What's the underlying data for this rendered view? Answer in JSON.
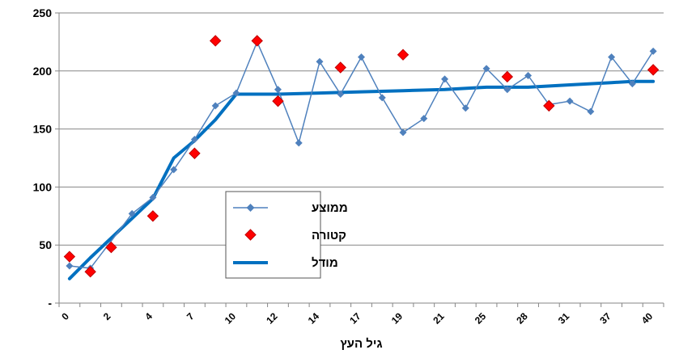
{
  "chart_data": {
    "type": "line",
    "xlabel": "גיל העץ",
    "ylabel": "",
    "ylim": [
      0,
      250
    ],
    "yticks": [
      "-",
      "50",
      "100",
      "150",
      "200",
      "250"
    ],
    "xtick_labels": [
      "0",
      "2",
      "4",
      "7",
      "10",
      "12",
      "14",
      "17",
      "19",
      "21",
      "25",
      "28",
      "31",
      "37",
      "40"
    ],
    "grid": "horizontal",
    "legend_position": "center-left",
    "colors": {
      "avg": "#4f81bd",
      "harvest": "#ff0000",
      "harvest_edge": "#c00000",
      "model": "#0070c0"
    },
    "series": [
      {
        "name": "ממוצע",
        "style": "line-diamond",
        "points": [
          [
            0,
            32
          ],
          [
            1,
            30
          ],
          [
            3,
            77
          ],
          [
            4,
            91
          ],
          [
            5,
            115
          ],
          [
            6,
            141
          ],
          [
            7,
            170
          ],
          [
            8,
            181
          ],
          [
            9,
            225
          ],
          [
            10,
            184
          ],
          [
            11,
            138
          ],
          [
            12,
            208
          ],
          [
            13,
            180
          ],
          [
            14,
            212
          ],
          [
            15,
            177
          ],
          [
            16,
            147
          ],
          [
            17,
            159
          ],
          [
            18,
            193
          ],
          [
            19,
            168
          ],
          [
            20,
            202
          ],
          [
            21,
            184
          ],
          [
            22,
            196
          ],
          [
            23,
            171
          ],
          [
            24,
            174
          ],
          [
            25,
            165
          ],
          [
            26,
            212
          ],
          [
            27,
            189
          ],
          [
            28,
            217
          ]
        ]
      },
      {
        "name": "קטורה",
        "style": "markers",
        "points": [
          [
            0,
            40
          ],
          [
            1,
            27
          ],
          [
            2,
            48
          ],
          [
            4,
            75
          ],
          [
            6,
            129
          ],
          [
            7,
            226
          ],
          [
            9,
            226
          ],
          [
            10,
            174
          ],
          [
            13,
            203
          ],
          [
            16,
            214
          ],
          [
            21,
            195
          ],
          [
            23,
            170
          ],
          [
            28,
            201
          ]
        ]
      },
      {
        "name": "מודל",
        "style": "thick-line",
        "points": [
          [
            0,
            21
          ],
          [
            1,
            39
          ],
          [
            2,
            56
          ],
          [
            3,
            73
          ],
          [
            4,
            90
          ],
          [
            5,
            125
          ],
          [
            6,
            140
          ],
          [
            7,
            158
          ],
          [
            8,
            180
          ],
          [
            10,
            180
          ],
          [
            12,
            181
          ],
          [
            14,
            182
          ],
          [
            16,
            183
          ],
          [
            18,
            184
          ],
          [
            20,
            186
          ],
          [
            22,
            186
          ],
          [
            24,
            188
          ],
          [
            25,
            189
          ],
          [
            26,
            190
          ],
          [
            27,
            191
          ],
          [
            28,
            191
          ]
        ]
      }
    ]
  }
}
